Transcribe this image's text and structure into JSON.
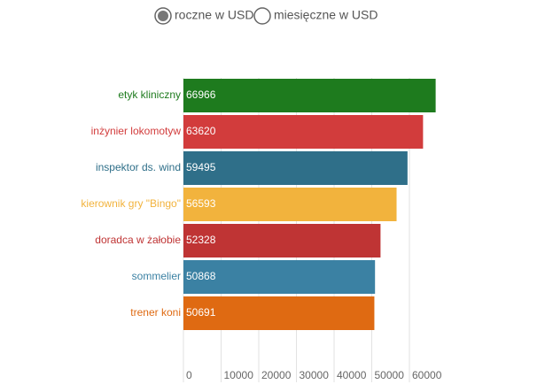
{
  "chart_data": {
    "type": "bar",
    "orientation": "horizontal",
    "options": [
      "roczne w USD",
      "miesięczne w USD"
    ],
    "selected_option": 0,
    "categories": [
      "etyk kliniczny",
      "inżynier lokomotyw",
      "inspektor ds. wind",
      "kierownik gry \"Bingo\"",
      "doradca w żałobie",
      "sommelier",
      "trener koni"
    ],
    "values": [
      66966,
      63620,
      59495,
      56593,
      52328,
      50868,
      50691
    ],
    "colors": [
      "#1e7b1e",
      "#d23c3c",
      "#2f6f89",
      "#f2b33d",
      "#bf3434",
      "#3b81a3",
      "#df6a12"
    ],
    "xlim": [
      0,
      70000
    ],
    "xticks": [
      0,
      10000,
      20000,
      30000,
      40000,
      50000,
      60000
    ],
    "grid": true
  }
}
